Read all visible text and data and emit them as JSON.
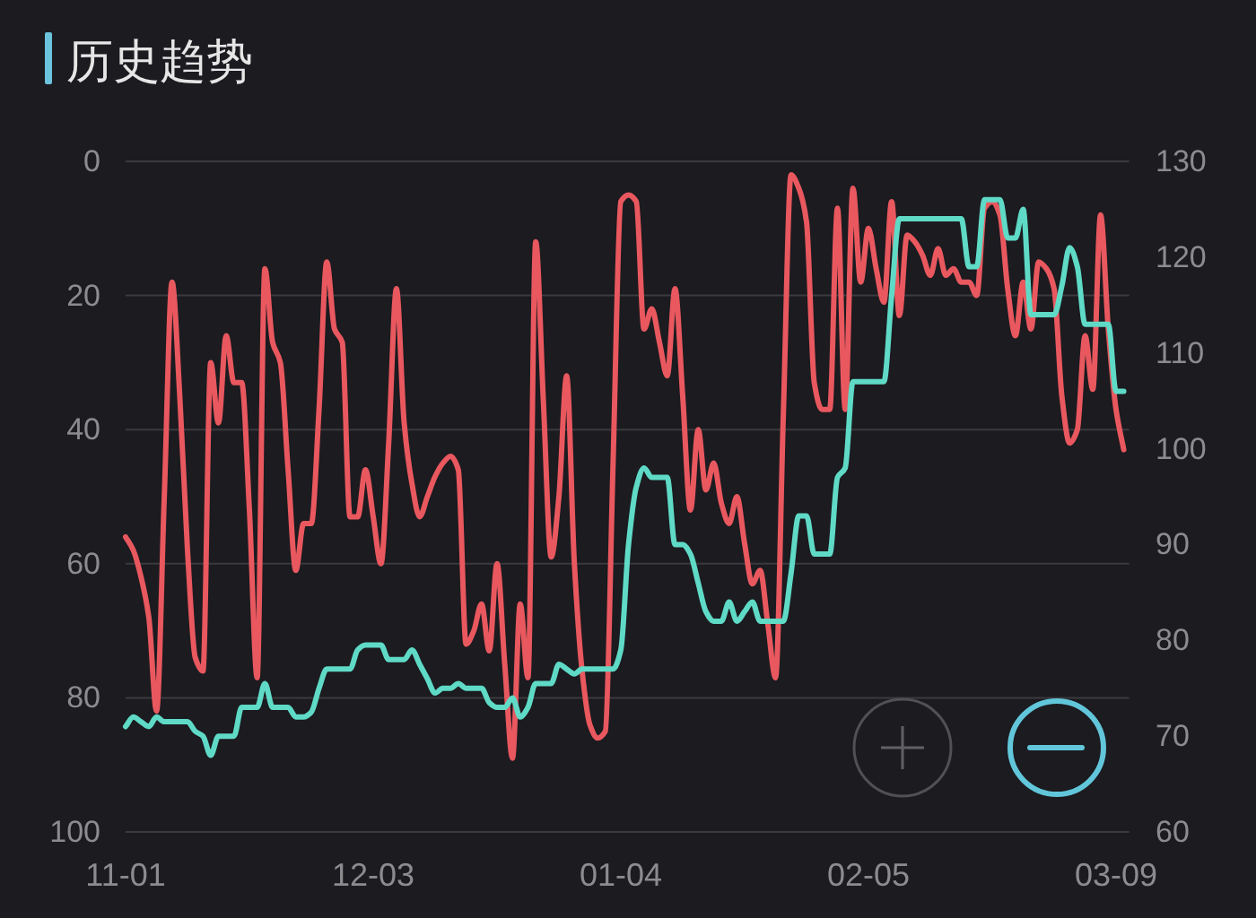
{
  "chart_data": {
    "type": "line",
    "title": "历史趋势",
    "categories": [
      "11-01",
      null,
      null,
      null,
      null,
      null,
      null,
      null,
      null,
      null,
      null,
      null,
      null,
      null,
      null,
      null,
      null,
      null,
      null,
      null,
      null,
      null,
      null,
      null,
      null,
      null,
      null,
      null,
      null,
      null,
      null,
      null,
      "12-03",
      null,
      null,
      null,
      null,
      null,
      null,
      null,
      null,
      null,
      null,
      null,
      null,
      null,
      null,
      null,
      null,
      null,
      null,
      null,
      null,
      null,
      null,
      null,
      null,
      null,
      null,
      null,
      null,
      null,
      null,
      null,
      "01-04",
      null,
      null,
      null,
      null,
      null,
      null,
      null,
      null,
      null,
      null,
      null,
      null,
      null,
      null,
      null,
      null,
      null,
      null,
      null,
      null,
      null,
      null,
      null,
      null,
      null,
      null,
      null,
      null,
      null,
      null,
      null,
      "02-05",
      null,
      null,
      null,
      null,
      null,
      null,
      null,
      null,
      null,
      null,
      null,
      null,
      null,
      null,
      null,
      null,
      null,
      null,
      null,
      null,
      null,
      null,
      null,
      null,
      null,
      null,
      null,
      null,
      null,
      null,
      null,
      "03-09",
      null
    ],
    "ylim": [
      100,
      0
    ],
    "yticks": [
      0,
      20,
      40,
      60,
      80,
      100
    ],
    "y2lim": [
      60,
      130
    ],
    "y2ticks": [
      60,
      70,
      80,
      90,
      100,
      110,
      120,
      130
    ],
    "grid": "y",
    "series": [
      {
        "color": "#e8585e",
        "values": [
          56,
          58,
          62,
          68,
          82,
          50,
          18,
          35,
          58,
          74,
          76,
          30,
          39,
          26,
          33,
          33,
          52,
          77,
          16,
          27,
          30,
          46,
          61,
          54,
          54,
          37,
          15,
          25,
          27,
          53,
          53,
          46,
          53,
          60,
          42,
          19,
          39,
          48,
          53,
          50,
          47,
          45,
          44,
          46,
          72,
          70,
          66,
          73,
          60,
          75,
          89,
          66,
          77,
          12,
          36,
          59,
          50,
          32,
          60,
          76,
          84,
          86,
          85,
          45,
          6,
          5,
          6,
          25,
          22,
          27,
          32,
          19,
          35,
          52,
          40,
          49,
          45,
          51,
          54,
          50,
          57,
          63,
          61,
          69,
          77,
          38,
          2,
          4,
          9,
          33,
          37,
          37,
          7,
          37,
          4,
          18,
          10,
          16,
          21,
          6,
          23,
          11,
          12,
          14,
          17,
          13,
          17,
          16,
          18,
          18,
          20,
          7,
          6,
          8,
          19,
          26,
          18,
          25,
          15,
          16,
          19,
          35,
          42,
          40,
          26,
          34,
          8,
          25,
          37,
          43
        ]
      },
      {
        "color": "#5fdac6",
        "axis": "y2",
        "values": [
          71,
          72,
          71.5,
          71,
          72,
          71.5,
          71.5,
          71.5,
          71.5,
          70.5,
          70,
          68,
          70,
          70,
          70,
          73,
          73,
          73,
          75.5,
          73,
          73,
          73,
          72,
          72,
          72.5,
          75,
          77,
          77,
          77,
          77,
          79,
          79.5,
          79.5,
          79.5,
          78,
          78,
          78,
          79,
          77.5,
          76,
          74.5,
          75,
          75,
          75.5,
          75,
          75,
          75,
          73.5,
          73,
          73,
          74,
          72,
          73,
          75.5,
          75.5,
          75.5,
          77.5,
          77,
          76.5,
          77,
          77,
          77,
          77,
          77,
          79,
          90,
          96,
          98,
          97,
          97,
          97,
          90,
          90,
          89,
          86,
          83,
          82,
          82,
          84,
          82,
          83,
          84,
          82,
          82,
          82,
          82,
          87,
          93,
          93,
          89,
          89,
          89,
          97,
          98,
          107,
          107,
          107,
          107,
          107,
          116,
          124,
          124,
          124,
          124,
          124,
          124,
          124,
          124,
          124,
          119,
          119,
          126,
          126,
          126,
          122,
          122,
          125,
          114,
          114,
          114,
          114,
          117,
          121,
          119,
          113,
          113,
          113,
          113,
          106,
          106
        ]
      }
    ]
  }
}
